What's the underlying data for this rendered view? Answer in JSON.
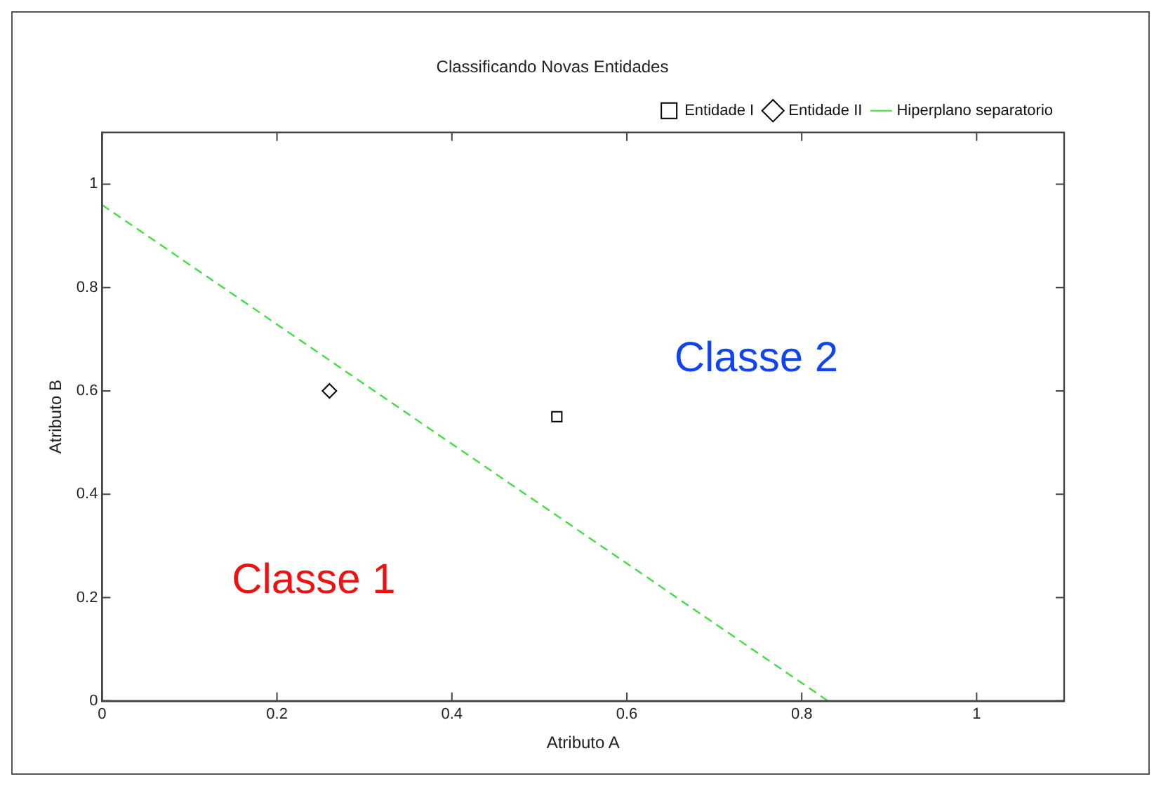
{
  "chart_data": {
    "type": "scatter",
    "title": "Classificando Novas Entidades",
    "xlabel": "Atributo A",
    "ylabel": "Atributo B",
    "xlim": [
      0,
      1.1
    ],
    "ylim": [
      0,
      1.1
    ],
    "xticks": [
      0,
      0.2,
      0.4,
      0.6,
      0.8,
      1
    ],
    "yticks": [
      0,
      0.2,
      0.4,
      0.6,
      0.8,
      1
    ],
    "grid": false,
    "legend": "top right",
    "series": [
      {
        "name": "Entidade I",
        "marker": "square",
        "color": "#000000",
        "x": [
          0.52
        ],
        "values": [
          0.55
        ]
      },
      {
        "name": "Entidade II",
        "marker": "diamond",
        "color": "#000000",
        "x": [
          0.26
        ],
        "values": [
          0.6
        ]
      },
      {
        "name": "Hiperplano separatorio",
        "type": "line",
        "marker": "none",
        "line_style": "dashed",
        "color": "#44dd44",
        "x": [
          0,
          0.83
        ],
        "values": [
          0.96,
          0
        ]
      }
    ],
    "annotations": [
      "Classe 1",
      "Classe 2"
    ]
  }
}
